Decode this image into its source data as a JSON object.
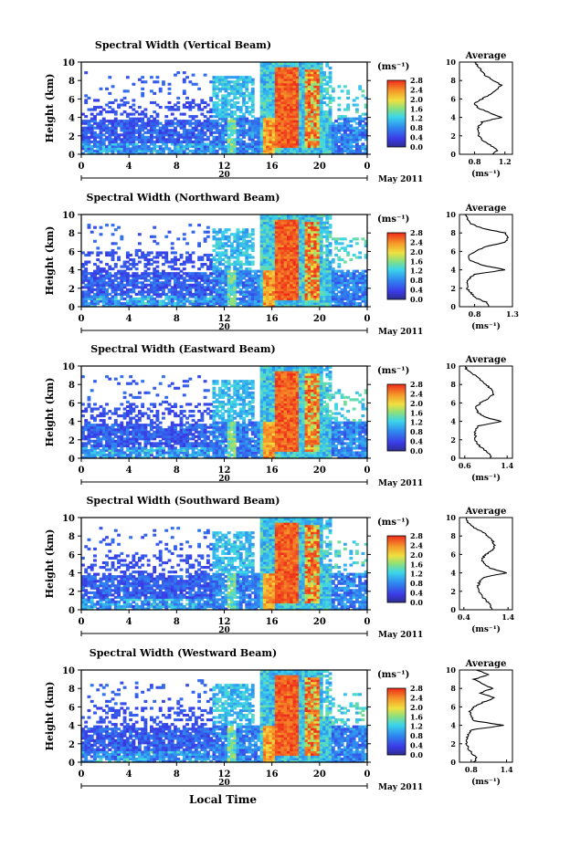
{
  "figure": {
    "x_axis_label": "Local Time",
    "date_label": "May 2011",
    "day_label": "20",
    "avg_title": "Average",
    "avg_unit": "(ms⁻¹)",
    "cbar_unit": "(ms⁻¹)",
    "y_label": "Height (km)"
  },
  "chart_data": [
    {
      "type": "heatmap",
      "title": "Spectral Width (Vertical Beam)",
      "xlabel": "Local Time",
      "ylabel": "Height (km)",
      "x_ticks": [
        "0",
        "4",
        "8",
        "12",
        "16",
        "20",
        "0"
      ],
      "y_ticks": [
        "0",
        "2",
        "4",
        "6",
        "8",
        "10"
      ],
      "xlim": [
        0,
        24
      ],
      "ylim": [
        0,
        10
      ],
      "colorbar": {
        "label": "(ms⁻¹)",
        "ticks": [
          "0.0",
          "0.4",
          "0.8",
          "1.2",
          "1.6",
          "2.0",
          "2.4",
          "2.8"
        ],
        "range": [
          0,
          2.8
        ]
      },
      "average": {
        "xlim": [
          0.6,
          1.3
        ],
        "xticks": [
          "0.8",
          "1.2"
        ],
        "xlabel": "(ms⁻¹)",
        "heights": [
          0,
          0.5,
          1,
          1.5,
          2,
          2.5,
          3,
          3.5,
          4,
          4.5,
          5,
          5.5,
          6,
          6.5,
          7,
          7.5,
          8,
          8.5,
          9,
          9.5,
          10
        ],
        "values": [
          1.05,
          1.1,
          1.0,
          0.9,
          0.85,
          0.85,
          0.85,
          0.9,
          1.15,
          1.0,
          0.85,
          0.8,
          0.9,
          1.0,
          1.1,
          1.15,
          1.05,
          0.95,
          0.9,
          0.85,
          0.8
        ]
      }
    },
    {
      "type": "heatmap",
      "title": "Spectral Width (Northward Beam)",
      "xlabel": "Local Time",
      "ylabel": "Height (km)",
      "x_ticks": [
        "0",
        "4",
        "8",
        "12",
        "16",
        "20",
        "0"
      ],
      "y_ticks": [
        "0",
        "2",
        "4",
        "6",
        "8",
        "10"
      ],
      "xlim": [
        0,
        24
      ],
      "ylim": [
        0,
        10
      ],
      "colorbar": {
        "label": "(ms⁻¹)",
        "ticks": [
          "0.0",
          "0.4",
          "0.8",
          "1.2",
          "1.6",
          "2.0",
          "2.4",
          "2.8"
        ],
        "range": [
          0,
          2.8
        ]
      },
      "average": {
        "xlim": [
          0.6,
          1.3
        ],
        "xticks": [
          "0.8",
          "1.3"
        ],
        "xlabel": "(ms⁻¹)",
        "heights": [
          0,
          0.5,
          1,
          1.5,
          2,
          2.5,
          3,
          3.5,
          4,
          4.5,
          5,
          5.5,
          6,
          6.5,
          7,
          7.5,
          8,
          8.5,
          9,
          9.5,
          10
        ],
        "values": [
          1.0,
          0.95,
          0.8,
          0.75,
          0.7,
          0.7,
          0.72,
          0.8,
          1.2,
          0.9,
          0.75,
          0.72,
          0.8,
          0.95,
          1.2,
          1.25,
          1.2,
          0.9,
          0.75,
          0.7,
          0.68
        ]
      }
    },
    {
      "type": "heatmap",
      "title": "Spectral Width (Eastward Beam)",
      "xlabel": "Local Time",
      "ylabel": "Height (km)",
      "x_ticks": [
        "0",
        "4",
        "8",
        "12",
        "16",
        "20",
        "0"
      ],
      "y_ticks": [
        "0",
        "2",
        "4",
        "6",
        "8",
        "10"
      ],
      "xlim": [
        0,
        24
      ],
      "ylim": [
        0,
        10
      ],
      "colorbar": {
        "label": "(ms⁻¹)",
        "ticks": [
          "0.0",
          "0.4",
          "0.8",
          "1.2",
          "1.6",
          "2.0",
          "2.4",
          "2.8"
        ],
        "range": [
          0,
          2.8
        ]
      },
      "average": {
        "xlim": [
          0.5,
          1.5
        ],
        "xticks": [
          "0.6",
          "1.4"
        ],
        "xlabel": "(ms⁻¹)",
        "heights": [
          0,
          0.5,
          1,
          1.5,
          2,
          2.5,
          3,
          3.5,
          4,
          4.5,
          5,
          5.5,
          6,
          6.5,
          7,
          7.5,
          8,
          8.5,
          9,
          9.5,
          10
        ],
        "values": [
          1.1,
          1.05,
          0.95,
          0.85,
          0.8,
          0.8,
          0.8,
          0.85,
          1.3,
          0.95,
          0.85,
          0.8,
          0.9,
          1.05,
          1.15,
          1.1,
          1.0,
          0.9,
          0.8,
          0.65,
          0.6
        ]
      }
    },
    {
      "type": "heatmap",
      "title": "Spectral Width (Southward Beam)",
      "xlabel": "Local Time",
      "ylabel": "Height (km)",
      "x_ticks": [
        "0",
        "4",
        "8",
        "12",
        "16",
        "20",
        "0"
      ],
      "y_ticks": [
        "0",
        "2",
        "4",
        "6",
        "8",
        "10"
      ],
      "xlim": [
        0,
        24
      ],
      "ylim": [
        0,
        10
      ],
      "colorbar": {
        "label": "(ms⁻¹)",
        "ticks": [
          "0.0",
          "0.4",
          "0.8",
          "1.2",
          "1.6",
          "2.0",
          "2.4",
          "2.8"
        ],
        "range": [
          0,
          2.8
        ]
      },
      "average": {
        "xlim": [
          0.3,
          1.5
        ],
        "xticks": [
          "0.4",
          "1.4"
        ],
        "xlabel": "(ms⁻¹)",
        "heights": [
          0,
          0.5,
          1,
          1.5,
          2,
          2.5,
          3,
          3.5,
          4,
          4.5,
          5,
          5.5,
          6,
          6.5,
          7,
          7.5,
          8,
          8.5,
          9,
          9.5,
          10
        ],
        "values": [
          1.05,
          1.0,
          0.9,
          0.8,
          0.75,
          0.72,
          0.75,
          0.85,
          1.35,
          1.0,
          0.85,
          0.8,
          0.9,
          1.05,
          1.1,
          1.05,
          0.95,
          0.8,
          0.6,
          0.5,
          0.45
        ]
      }
    },
    {
      "type": "heatmap",
      "title": "Spectral Width (Westward Beam)",
      "xlabel": "Local Time",
      "ylabel": "Height (km)",
      "x_ticks": [
        "0",
        "4",
        "8",
        "12",
        "16",
        "20",
        "0"
      ],
      "y_ticks": [
        "0",
        "2",
        "4",
        "6",
        "8",
        "10"
      ],
      "xlim": [
        0,
        24
      ],
      "ylim": [
        0,
        10
      ],
      "colorbar": {
        "label": "(ms⁻¹)",
        "ticks": [
          "0.0",
          "0.4",
          "0.8",
          "1.2",
          "1.6",
          "2.0",
          "2.4",
          "2.8"
        ],
        "range": [
          0,
          2.8
        ]
      },
      "average": {
        "xlim": [
          0.6,
          1.5
        ],
        "xticks": [
          "0.8",
          "1.4"
        ],
        "xlabel": "(ms⁻¹)",
        "heights": [
          0,
          0.5,
          1,
          1.5,
          2,
          2.5,
          3,
          3.5,
          4,
          4.5,
          5,
          5.5,
          6,
          6.5,
          7,
          7.5,
          8,
          8.5,
          9,
          9.5,
          10
        ],
        "values": [
          0.85,
          0.9,
          0.8,
          0.75,
          0.72,
          0.72,
          0.75,
          0.8,
          1.35,
          0.85,
          0.8,
          0.78,
          0.85,
          1.0,
          1.2,
          0.95,
          1.15,
          1.0,
          0.85,
          1.1,
          0.9
        ]
      }
    }
  ]
}
